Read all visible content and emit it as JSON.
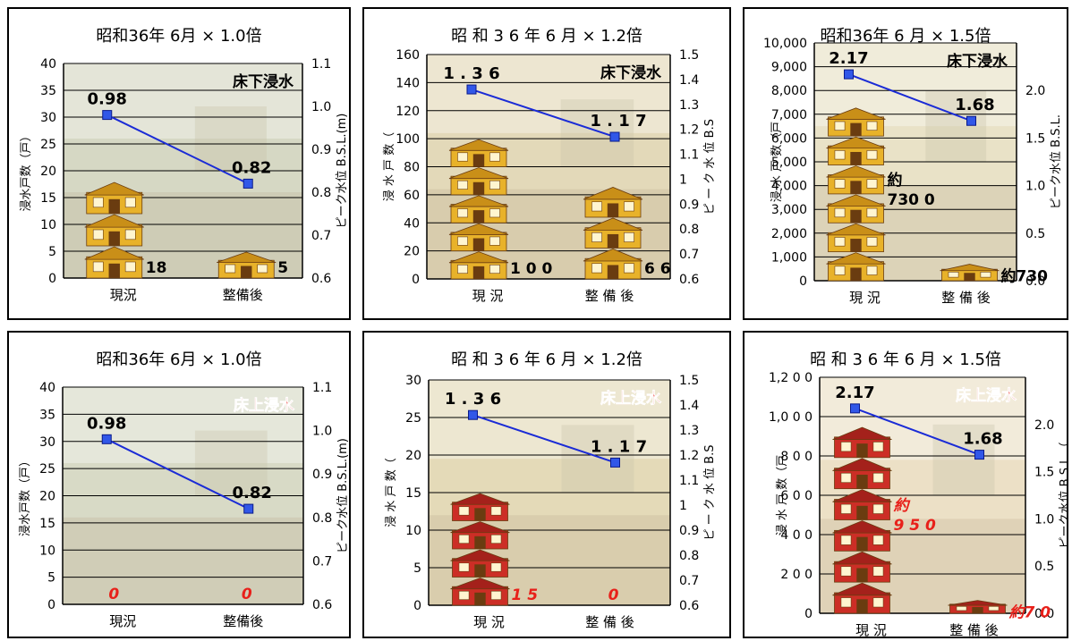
{
  "colors": {
    "line": "#1a2bd6",
    "marker_fill": "#3157e8",
    "house_yellow": "#e8b22a",
    "house_red": "#cc2e26",
    "red_text": "#e8201a",
    "grid": "#000000",
    "border": "#000000"
  },
  "icons": {
    "house_icon": "house-icon",
    "photo_background": "flood-photo-background"
  },
  "chart_data": [
    {
      "type": "bar",
      "title": "昭和36年 6月 × 1.0倍",
      "category": "床下浸水",
      "categories": [
        "現況",
        "整備後"
      ],
      "ylabel": "浸水戸数（戸）",
      "y2label": "ピーク水位 B.S.L.(m)",
      "ylim": [
        0,
        40
      ],
      "y_ticks": [
        "0",
        "5",
        "10",
        "15",
        "20",
        "25",
        "30",
        "35",
        "40"
      ],
      "y2lim": [
        0.6,
        1.1
      ],
      "y2_ticks": [
        "0.6",
        "0.7",
        "0.8",
        "0.9",
        "1.0",
        "1.1"
      ],
      "grid": true,
      "series": [
        {
          "role": "bar",
          "values": [
            18,
            5
          ],
          "labels": [
            "18",
            "5"
          ]
        },
        {
          "role": "line",
          "values": [
            0.98,
            0.82
          ],
          "labels": [
            "0.98",
            "0.82"
          ]
        }
      ]
    },
    {
      "type": "bar",
      "title": "昭 和 3 6 年  6 月  × 1.2倍",
      "category": "床下浸水",
      "categories": [
        "現 況",
        "整 備 後"
      ],
      "ylabel": "浸 水 戸 数（",
      "y2label": "ピ ー ク 水 位  B.S",
      "ylim": [
        0,
        160
      ],
      "y_ticks": [
        "0",
        "20",
        "40",
        "60",
        "80",
        "100",
        "120",
        "140",
        "160"
      ],
      "y2lim": [
        0.6,
        1.5
      ],
      "y2_ticks": [
        "0.6",
        "0.7",
        "0.8",
        "0.9",
        "1",
        "1.1",
        "1.2",
        "1.3",
        "1.4",
        "1.5"
      ],
      "grid": true,
      "series": [
        {
          "role": "bar",
          "values": [
            100,
            66
          ],
          "labels": [
            "1 0 0",
            "6 6"
          ]
        },
        {
          "role": "line",
          "values": [
            1.36,
            1.17
          ],
          "labels": [
            "1 . 3 6",
            "1 . 1 7"
          ]
        }
      ]
    },
    {
      "type": "bar",
      "title": "昭和36年 6 月 × 1.5倍",
      "category": "床下浸水",
      "categories": [
        "現 況",
        "整 備 後"
      ],
      "ylabel": "浸 水 戸 数（戸",
      "y2label": "ピーク水位 B.S.L.",
      "ylim": [
        0,
        10000
      ],
      "y_ticks": [
        "0",
        "1,000",
        "2,000",
        "3,000",
        "4,000",
        "5,000",
        "6,000",
        "7,000",
        "8,000",
        "9,000",
        "10,000"
      ],
      "y2lim": [
        0,
        2.5
      ],
      "y2_ticks": [
        "0.0",
        "0.5",
        "1.0",
        "1.5",
        "2.0"
      ],
      "grid": true,
      "series": [
        {
          "role": "bar",
          "values": [
            7300,
            730
          ],
          "labels": [
            "約\n730 0",
            "約730"
          ]
        },
        {
          "role": "line",
          "values": [
            2.17,
            1.68
          ],
          "labels": [
            "2.17",
            "1.68"
          ]
        }
      ]
    },
    {
      "type": "bar",
      "title": "昭和36年 6月 × 1.0倍",
      "category": "床上浸水",
      "categories": [
        "現況",
        "整備後"
      ],
      "ylabel": "浸水戸数（戸）",
      "y2label": "ピーク水位 B.S.L.(m)",
      "ylim": [
        0,
        40
      ],
      "y_ticks": [
        "0",
        "5",
        "10",
        "15",
        "20",
        "25",
        "30",
        "35",
        "40"
      ],
      "y2lim": [
        0.6,
        1.1
      ],
      "y2_ticks": [
        "0.6",
        "0.7",
        "0.8",
        "0.9",
        "1.0",
        "1.1"
      ],
      "grid": true,
      "series": [
        {
          "role": "bar",
          "values": [
            0,
            0
          ],
          "labels": [
            "0",
            "0"
          ]
        },
        {
          "role": "line",
          "values": [
            0.98,
            0.82
          ],
          "labels": [
            "0.98",
            "0.82"
          ]
        }
      ]
    },
    {
      "type": "bar",
      "title": "昭 和 3 6 年  6 月  × 1.2倍",
      "category": "床上浸水",
      "categories": [
        "現 況",
        "整 備 後"
      ],
      "ylabel": "浸 水 戸 数（",
      "y2label": "ピ ー ク 水 位  B.S",
      "ylim": [
        0,
        30
      ],
      "y_ticks": [
        "0",
        "5",
        "10",
        "15",
        "20",
        "25",
        "30"
      ],
      "y2lim": [
        0.6,
        1.5
      ],
      "y2_ticks": [
        "0.6",
        "0.7",
        "0.8",
        "0.9",
        "1",
        "1.1",
        "1.2",
        "1.3",
        "1.4",
        "1.5"
      ],
      "grid": true,
      "series": [
        {
          "role": "bar",
          "values": [
            15,
            0
          ],
          "labels": [
            "1 5",
            "0"
          ]
        },
        {
          "role": "line",
          "values": [
            1.36,
            1.17
          ],
          "labels": [
            "1 . 3 6",
            "1 . 1 7"
          ]
        }
      ]
    },
    {
      "type": "bar",
      "title": "昭 和 3 6 年  6 月  × 1.5倍",
      "category": "床上浸水",
      "categories": [
        "現 況",
        "整 備 後"
      ],
      "ylabel": "浸 水 戸 数（戸",
      "y2label": "ピーク水位 B.S.L.（",
      "ylim": [
        0,
        1200
      ],
      "y_ticks": [
        "0",
        "2 0 0",
        "4 0 0",
        "6 0 0",
        "8 0 0",
        "1,0 0 0",
        "1,2 0 0"
      ],
      "y2lim": [
        0,
        2.5
      ],
      "y2_ticks": [
        "0.0",
        "0.5",
        "1.0",
        "1.5",
        "2.0"
      ],
      "grid": true,
      "series": [
        {
          "role": "bar",
          "values": [
            950,
            70
          ],
          "labels": [
            "約\n9 5 0",
            "約7 0"
          ]
        },
        {
          "role": "line",
          "values": [
            2.17,
            1.68
          ],
          "labels": [
            "2.17",
            "1.68"
          ]
        }
      ]
    }
  ]
}
